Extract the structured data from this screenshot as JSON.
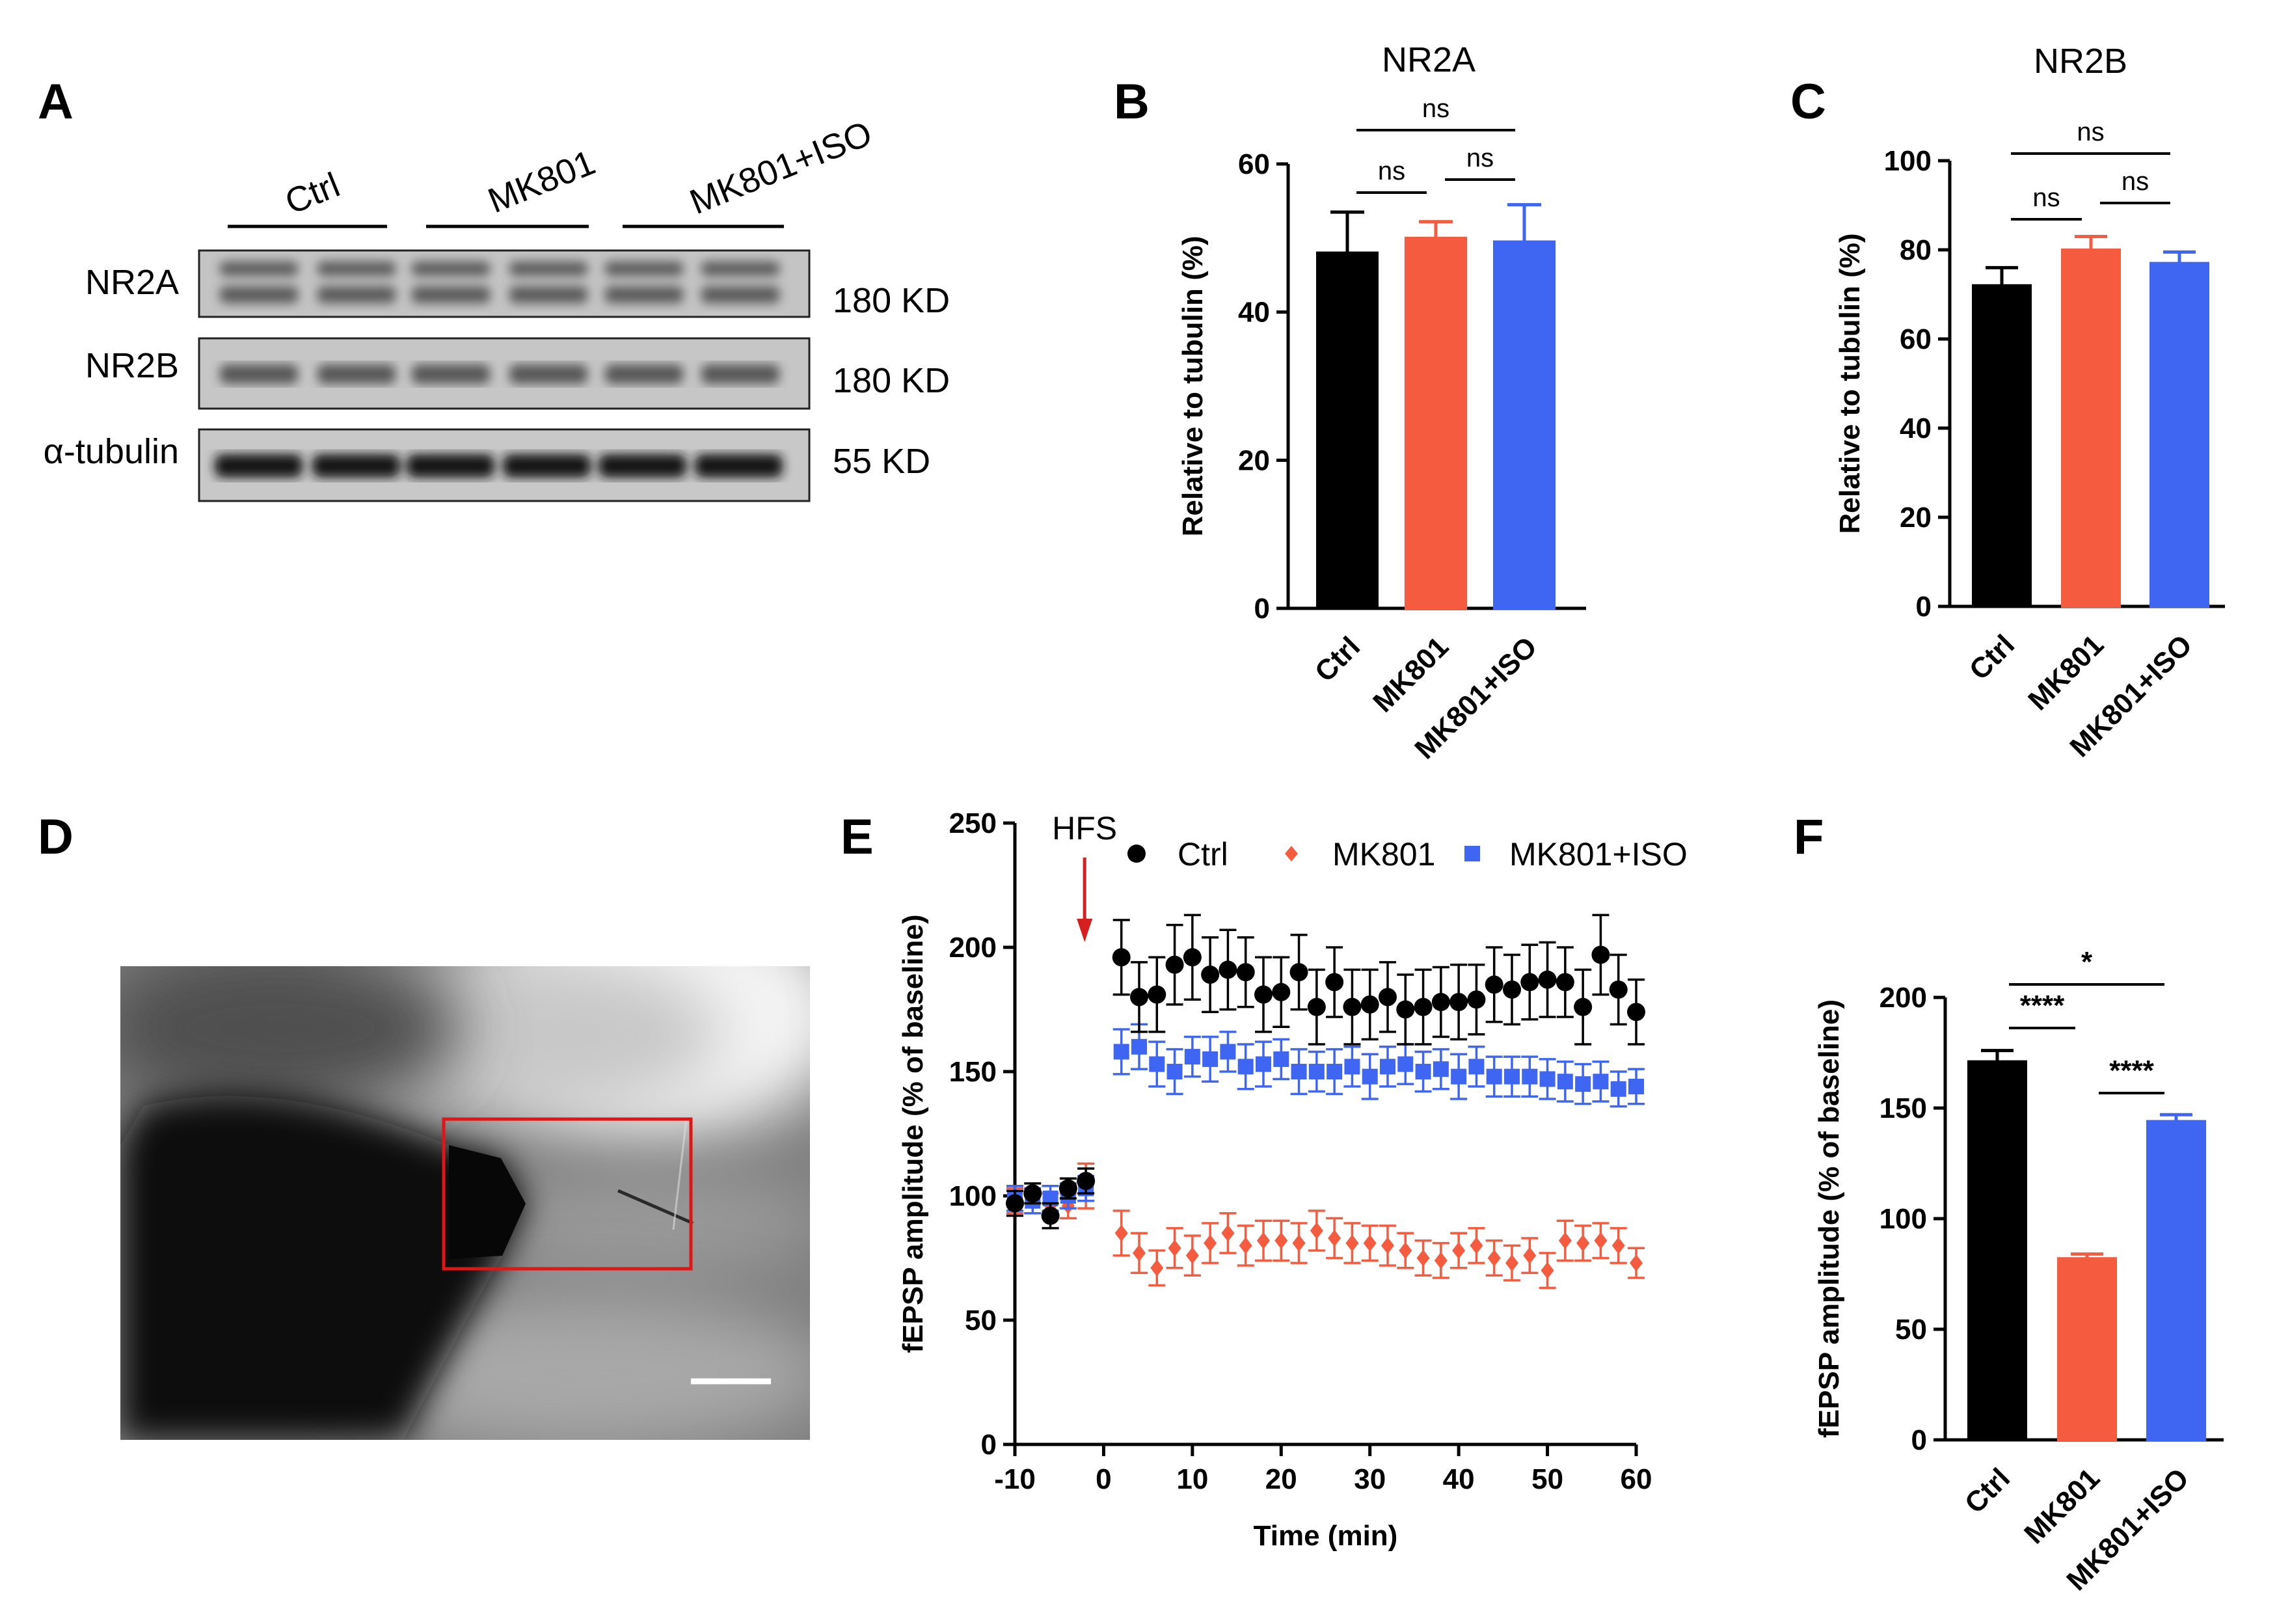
{
  "panels": {
    "a": {
      "letter": "A",
      "groups": [
        "Ctrl",
        "MK801",
        "MK801+ISO"
      ],
      "bands": [
        {
          "name": "NR2A",
          "size": "180 KD"
        },
        {
          "name": "NR2B",
          "size": "180 KD"
        },
        {
          "name": "α-tubulin",
          "size": "55 KD"
        }
      ]
    },
    "d": {
      "letter": "D"
    }
  },
  "colors": {
    "ctrl": "#000000",
    "mk801": "#f55c3f",
    "mk801iso": "#3f66f2",
    "hfs_arrow": "#d62020",
    "roi_box": "#e01515"
  },
  "chart_data": [
    {
      "panel": "B",
      "type": "bar",
      "title": "NR2A",
      "categories": [
        "Ctrl",
        "MK801",
        "MK801+ISO"
      ],
      "values": [
        48,
        50,
        49.5
      ],
      "errors": [
        5.5,
        2.2,
        5
      ],
      "ylabel": "Relative to tubulin (%)",
      "ylim": [
        0,
        60
      ],
      "yticks": [
        0,
        20,
        40,
        60
      ],
      "significance": [
        {
          "from": 0,
          "to": 1,
          "label": "ns"
        },
        {
          "from": 1,
          "to": 2,
          "label": "ns"
        },
        {
          "from": 0,
          "to": 2,
          "label": "ns"
        }
      ]
    },
    {
      "panel": "C",
      "type": "bar",
      "title": "NR2B",
      "categories": [
        "Ctrl",
        "MK801",
        "MK801+ISO"
      ],
      "values": [
        72,
        80,
        77
      ],
      "errors": [
        4,
        3,
        2.5
      ],
      "ylabel": "Relative to tubulin (%)",
      "ylim": [
        0,
        100
      ],
      "yticks": [
        0,
        20,
        40,
        60,
        80,
        100
      ],
      "significance": [
        {
          "from": 0,
          "to": 1,
          "label": "ns"
        },
        {
          "from": 1,
          "to": 2,
          "label": "ns"
        },
        {
          "from": 0,
          "to": 2,
          "label": "ns"
        }
      ]
    },
    {
      "panel": "E",
      "type": "scatter",
      "title": "",
      "xlabel": "Time (min)",
      "ylabel": "fEPSP amplitude (% of baseline)",
      "xlim": [
        -10,
        60
      ],
      "ylim": [
        0,
        250
      ],
      "xticks": [
        -10,
        0,
        10,
        20,
        30,
        40,
        50,
        60
      ],
      "yticks": [
        0,
        50,
        100,
        150,
        200,
        250
      ],
      "annotation": "HFS",
      "annotation_x": -2,
      "x": [
        -10,
        -8,
        -6,
        -4,
        -2,
        0,
        2,
        4,
        6,
        8,
        10,
        12,
        14,
        16,
        18,
        20,
        22,
        24,
        26,
        28,
        30,
        32,
        34,
        36,
        38,
        40,
        42,
        44,
        46,
        48,
        50,
        52,
        54,
        56,
        58,
        60
      ],
      "series": [
        {
          "name": "Ctrl",
          "x": [
            -10,
            -8,
            -6,
            -4,
            -2,
            2,
            4,
            6,
            8,
            10,
            12,
            14,
            16,
            18,
            20,
            22,
            24,
            26,
            28,
            30,
            32,
            34,
            36,
            38,
            40,
            42,
            44,
            46,
            48,
            50,
            52,
            54,
            56,
            58,
            60
          ],
          "values": [
            97,
            101,
            92,
            103,
            106,
            196,
            180,
            181,
            193,
            196,
            189,
            191,
            190,
            181,
            182,
            190,
            176,
            186,
            176,
            177,
            180,
            175,
            176,
            178,
            178,
            179,
            185,
            183,
            186,
            187,
            186,
            176,
            197,
            183,
            174
          ],
          "errors": [
            5,
            4,
            5,
            4,
            5,
            15,
            14,
            15,
            16,
            17,
            15,
            16,
            14,
            15,
            14,
            15,
            15,
            14,
            15,
            14,
            14,
            14,
            15,
            14,
            15,
            14,
            15,
            14,
            15,
            15,
            14,
            15,
            16,
            14,
            13
          ]
        },
        {
          "name": "MK801",
          "x": [
            -10,
            -8,
            -6,
            -4,
            -2,
            2,
            4,
            6,
            8,
            10,
            12,
            14,
            16,
            18,
            20,
            22,
            24,
            26,
            28,
            30,
            32,
            34,
            36,
            38,
            40,
            42,
            44,
            46,
            48,
            50,
            52,
            54,
            56,
            58,
            60
          ],
          "values": [
            98,
            98,
            96,
            96,
            104,
            85,
            77,
            71,
            79,
            76,
            81,
            85,
            80,
            82,
            82,
            81,
            86,
            83,
            81,
            81,
            80,
            78,
            75,
            74,
            78,
            80,
            75,
            73,
            76,
            70,
            82,
            81,
            82,
            80,
            73
          ],
          "errors": [
            5,
            5,
            5,
            5,
            9,
            9,
            8,
            7,
            8,
            8,
            8,
            8,
            8,
            8,
            8,
            8,
            8,
            8,
            8,
            7,
            8,
            7,
            7,
            7,
            7,
            7,
            7,
            7,
            7,
            7,
            8,
            7,
            7,
            7,
            6
          ]
        },
        {
          "name": "MK801+ISO",
          "x": [
            -10,
            -8,
            -6,
            -4,
            -2,
            2,
            4,
            6,
            8,
            10,
            12,
            14,
            16,
            18,
            20,
            22,
            24,
            26,
            28,
            30,
            32,
            34,
            36,
            38,
            40,
            42,
            44,
            46,
            48,
            50,
            52,
            54,
            56,
            58,
            60
          ],
          "values": [
            99,
            98,
            99,
            100,
            103,
            158,
            160,
            153,
            150,
            156,
            155,
            158,
            152,
            153,
            155,
            150,
            150,
            150,
            152,
            148,
            152,
            153,
            150,
            151,
            148,
            152,
            148,
            148,
            148,
            147,
            146,
            145,
            146,
            143,
            144
          ],
          "errors": [
            5,
            5,
            5,
            5,
            5,
            9,
            9,
            9,
            9,
            8,
            9,
            8,
            9,
            9,
            8,
            9,
            8,
            9,
            8,
            9,
            8,
            8,
            8,
            8,
            9,
            8,
            8,
            8,
            8,
            8,
            8,
            8,
            8,
            7,
            7
          ]
        }
      ]
    },
    {
      "panel": "F",
      "type": "bar",
      "title": "",
      "categories": [
        "Ctrl",
        "MK801",
        "MK801+ISO"
      ],
      "values": [
        171,
        82,
        144
      ],
      "errors": [
        5,
        2,
        3
      ],
      "ylabel": "fEPSP amplitude (% of baseline)",
      "ylim": [
        0,
        200
      ],
      "yticks": [
        0,
        50,
        100,
        150,
        200
      ],
      "significance": [
        {
          "from": 0,
          "to": 1,
          "label": "****"
        },
        {
          "from": 1,
          "to": 2,
          "label": "****"
        },
        {
          "from": 0,
          "to": 2,
          "label": "*"
        }
      ]
    }
  ]
}
